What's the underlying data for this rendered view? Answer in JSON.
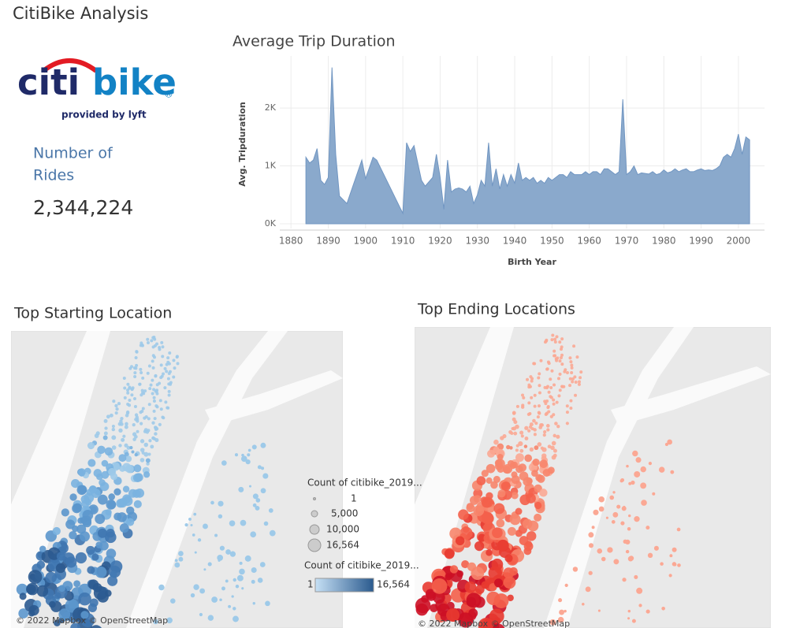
{
  "dashboard_title": "CitiBike Analysis",
  "logo": {
    "part1": "citi",
    "part2": "bike",
    "mark": "®",
    "tagline": "provided by lyft"
  },
  "kpi": {
    "label_line1": "Number of",
    "label_line2": "Rides",
    "value": "2,344,224"
  },
  "chart_data": {
    "type": "area",
    "title": "Average Trip Duration",
    "x_label": "Birth Year",
    "y_label": "Avg. Tripduration",
    "color": "#8aa9cc",
    "line_color": "#7196c2",
    "grid": true,
    "xlim": [
      1877,
      2007
    ],
    "ylim": [
      0,
      2900
    ],
    "xticks": [
      1880,
      1890,
      1900,
      1910,
      1920,
      1930,
      1940,
      1950,
      1960,
      1970,
      1980,
      1990,
      2000
    ],
    "yticks": [
      {
        "value": 0,
        "label": "0K"
      },
      {
        "value": 1000,
        "label": "1K"
      },
      {
        "value": 2000,
        "label": "2K"
      }
    ],
    "x": [
      1884,
      1885,
      1886,
      1887,
      1888,
      1889,
      1890,
      1891,
      1892,
      1893,
      1895,
      1899,
      1900,
      1902,
      1903,
      1910,
      1911,
      1912,
      1913,
      1915,
      1916,
      1918,
      1919,
      1920,
      1921,
      1922,
      1923,
      1924,
      1925,
      1926,
      1927,
      1928,
      1929,
      1930,
      1931,
      1932,
      1933,
      1934,
      1935,
      1936,
      1937,
      1938,
      1939,
      1940,
      1941,
      1942,
      1943,
      1944,
      1945,
      1946,
      1947,
      1948,
      1949,
      1950,
      1951,
      1952,
      1953,
      1954,
      1955,
      1956,
      1957,
      1958,
      1959,
      1960,
      1961,
      1962,
      1963,
      1964,
      1965,
      1966,
      1967,
      1968,
      1969,
      1970,
      1971,
      1972,
      1973,
      1974,
      1975,
      1976,
      1977,
      1978,
      1979,
      1980,
      1981,
      1982,
      1983,
      1984,
      1985,
      1986,
      1987,
      1988,
      1989,
      1990,
      1991,
      1992,
      1993,
      1994,
      1995,
      1996,
      1997,
      1998,
      1999,
      2000,
      2001,
      2002,
      2003
    ],
    "values": [
      1150,
      1050,
      1100,
      1300,
      750,
      680,
      800,
      2700,
      1200,
      480,
      350,
      1100,
      780,
      1150,
      1100,
      180,
      1400,
      1250,
      1350,
      750,
      650,
      800,
      1200,
      800,
      250,
      1100,
      550,
      600,
      620,
      600,
      550,
      650,
      350,
      500,
      750,
      650,
      1400,
      650,
      950,
      600,
      850,
      650,
      850,
      700,
      1050,
      750,
      800,
      750,
      800,
      700,
      750,
      700,
      800,
      750,
      800,
      850,
      850,
      800,
      900,
      850,
      850,
      850,
      900,
      850,
      900,
      900,
      850,
      950,
      950,
      900,
      850,
      900,
      2150,
      850,
      900,
      1000,
      850,
      880,
      870,
      860,
      900,
      850,
      870,
      930,
      880,
      900,
      950,
      900,
      930,
      950,
      900,
      900,
      930,
      950,
      920,
      930,
      920,
      950,
      1000,
      1150,
      1200,
      1150,
      1300,
      1550,
      1200,
      1500,
      1450
    ]
  },
  "map_start": {
    "title": "Top Starting Location",
    "attribution": "© 2022 Mapbox  © OpenStreetMap"
  },
  "map_end": {
    "title": "Top Ending Locations",
    "attribution": "© 2022 Mapbox  © OpenStreetMap"
  },
  "legend": {
    "size_title": "Count of citibike_2019...",
    "size_items": [
      "1",
      "5,000",
      "10,000",
      "16,564"
    ],
    "color_title": "Count of citibike_2019...",
    "color_min": "1",
    "color_max": "16,564"
  }
}
